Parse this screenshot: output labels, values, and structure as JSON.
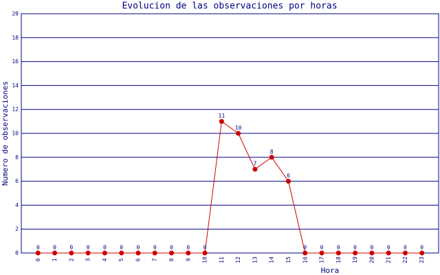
{
  "chart_data": {
    "type": "line",
    "title": "Evolucion de las observaciones por horas",
    "x_label": "Hora",
    "y_label": "Numero de observaciones",
    "categories": [
      "0",
      "1",
      "2",
      "3",
      "4",
      "5",
      "6",
      "7",
      "8",
      "9",
      "10",
      "11",
      "12",
      "13",
      "14",
      "15",
      "16",
      "17",
      "18",
      "19",
      "20",
      "21",
      "22",
      "23"
    ],
    "values": [
      0,
      0,
      0,
      0,
      0,
      0,
      0,
      0,
      0,
      0,
      0,
      11,
      10,
      7,
      8,
      6,
      0,
      0,
      0,
      0,
      0,
      0,
      0,
      0
    ],
    "color": "#cc0000",
    "ylim": [
      0,
      20
    ],
    "yticks": [
      0,
      2,
      4,
      6,
      8,
      10,
      12,
      14,
      16,
      18,
      20
    ],
    "grid": true
  }
}
